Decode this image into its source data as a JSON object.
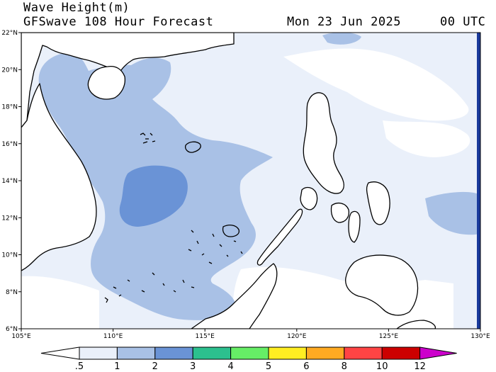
{
  "header": {
    "title": "Wave Height(m)",
    "subtitle": "GFSwave 108 Hour Forecast",
    "date": "Mon 23 Jun 2025",
    "time": "00 UTC"
  },
  "map": {
    "lon_range": [
      105,
      130
    ],
    "lat_range": [
      6,
      22
    ],
    "lon_ticks": [
      "105°E",
      "110°E",
      "115°E",
      "120°E",
      "125°E",
      "130°E"
    ],
    "lat_ticks": [
      "22°N",
      "20°N",
      "18°N",
      "16°N",
      "14°N",
      "12°N",
      "10°N",
      "8°N",
      "6°N"
    ],
    "ocean_background_color": "#eaf0fa",
    "land_color": "#ffffff",
    "coast_color": "#000000",
    "shading": [
      {
        "level": "0.5–1 m",
        "color": "#eaf0fa",
        "where": "open ocean, east of the Philippines and Gulf of Tonkin"
      },
      {
        "level": "1–2 m",
        "color": "#a9c1e6",
        "where": "central and southern South China Sea"
      },
      {
        "level": "2–3 m",
        "color": "#6a93d6",
        "where": "core near 111–113°E, 12–15°N"
      }
    ]
  },
  "colorbar": {
    "labels": [
      ".5",
      "1",
      "2",
      "3",
      "4",
      "5",
      "6",
      "8",
      "10",
      "12"
    ],
    "colors": [
      "#ffffff",
      "#eaf0fa",
      "#a9c1e6",
      "#6a93d6",
      "#2cc08e",
      "#66ee66",
      "#ffee22",
      "#ffaa22",
      "#ff4444",
      "#cc0000",
      "#cc00cc"
    ]
  }
}
